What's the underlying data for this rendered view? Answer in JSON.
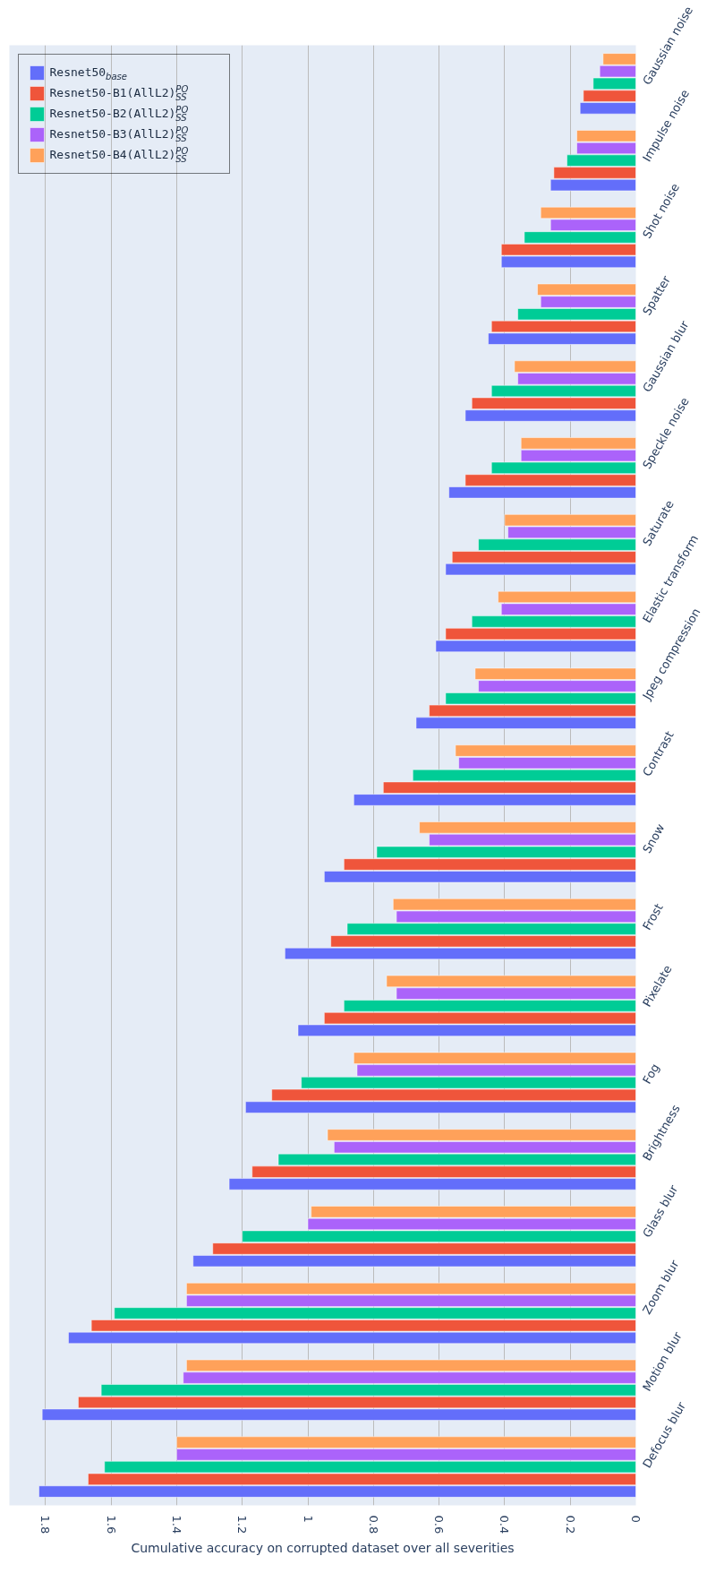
{
  "chart_data": {
    "type": "bar",
    "orientation": "horizontal",
    "xlabel": "Cumulative accuracy on corrupted dataset over all severities",
    "categories": [
      "Gaussian noise",
      "Impulse noise",
      "Shot noise",
      "Spatter",
      "Gaussian blur",
      "Speckle noise",
      "Saturate",
      "Elastic transform",
      "Jpeg compression",
      "Contrast",
      "Snow",
      "Frost",
      "Pixelate",
      "Fog",
      "Brightness",
      "Glass blur",
      "Zoom blur",
      "Motion blur",
      "Defocus blur"
    ],
    "series": [
      {
        "name": "Resnet50$_{base}$",
        "color": "#636efa",
        "values": [
          0.17,
          0.26,
          0.41,
          0.45,
          0.52,
          0.57,
          0.58,
          0.61,
          0.67,
          0.86,
          0.95,
          1.07,
          1.03,
          1.19,
          1.24,
          1.35,
          1.73,
          1.81,
          1.82
        ]
      },
      {
        "name": "Resnet50-B1(AllL2)$^{PO}$$_{SS}$",
        "color": "#ef553b",
        "values": [
          0.16,
          0.25,
          0.41,
          0.44,
          0.5,
          0.52,
          0.56,
          0.58,
          0.63,
          0.77,
          0.89,
          0.93,
          0.95,
          1.11,
          1.17,
          1.29,
          1.66,
          1.7,
          1.67
        ]
      },
      {
        "name": "Resnet50-B2(AllL2)$^{PO}$$_{SS}$",
        "color": "#00cc96",
        "values": [
          0.13,
          0.21,
          0.34,
          0.36,
          0.44,
          0.44,
          0.48,
          0.5,
          0.58,
          0.68,
          0.79,
          0.88,
          0.89,
          1.02,
          1.09,
          1.2,
          1.59,
          1.63,
          1.62
        ]
      },
      {
        "name": "Resnet50-B3(AllL2)$^{PO}$$_{SS}$",
        "color": "#ab63fa",
        "values": [
          0.11,
          0.18,
          0.26,
          0.29,
          0.36,
          0.35,
          0.39,
          0.41,
          0.48,
          0.54,
          0.63,
          0.73,
          0.73,
          0.85,
          0.92,
          1.0,
          1.37,
          1.38,
          1.4
        ]
      },
      {
        "name": "Resnet50-B4(AllL2)$^{PO}$$_{SS}$",
        "color": "#ffa15a",
        "values": [
          0.1,
          0.18,
          0.29,
          0.3,
          0.37,
          0.35,
          0.4,
          0.42,
          0.49,
          0.55,
          0.66,
          0.74,
          0.76,
          0.86,
          0.94,
          0.99,
          1.37,
          1.37,
          1.4
        ]
      }
    ],
    "xlim": [
      1.91,
      0
    ],
    "xticks": [
      1.8,
      1.6,
      1.4,
      1.2,
      1,
      0.8,
      0.6,
      0.4,
      0.2,
      0
    ],
    "grid": "x",
    "legend": "top left"
  }
}
